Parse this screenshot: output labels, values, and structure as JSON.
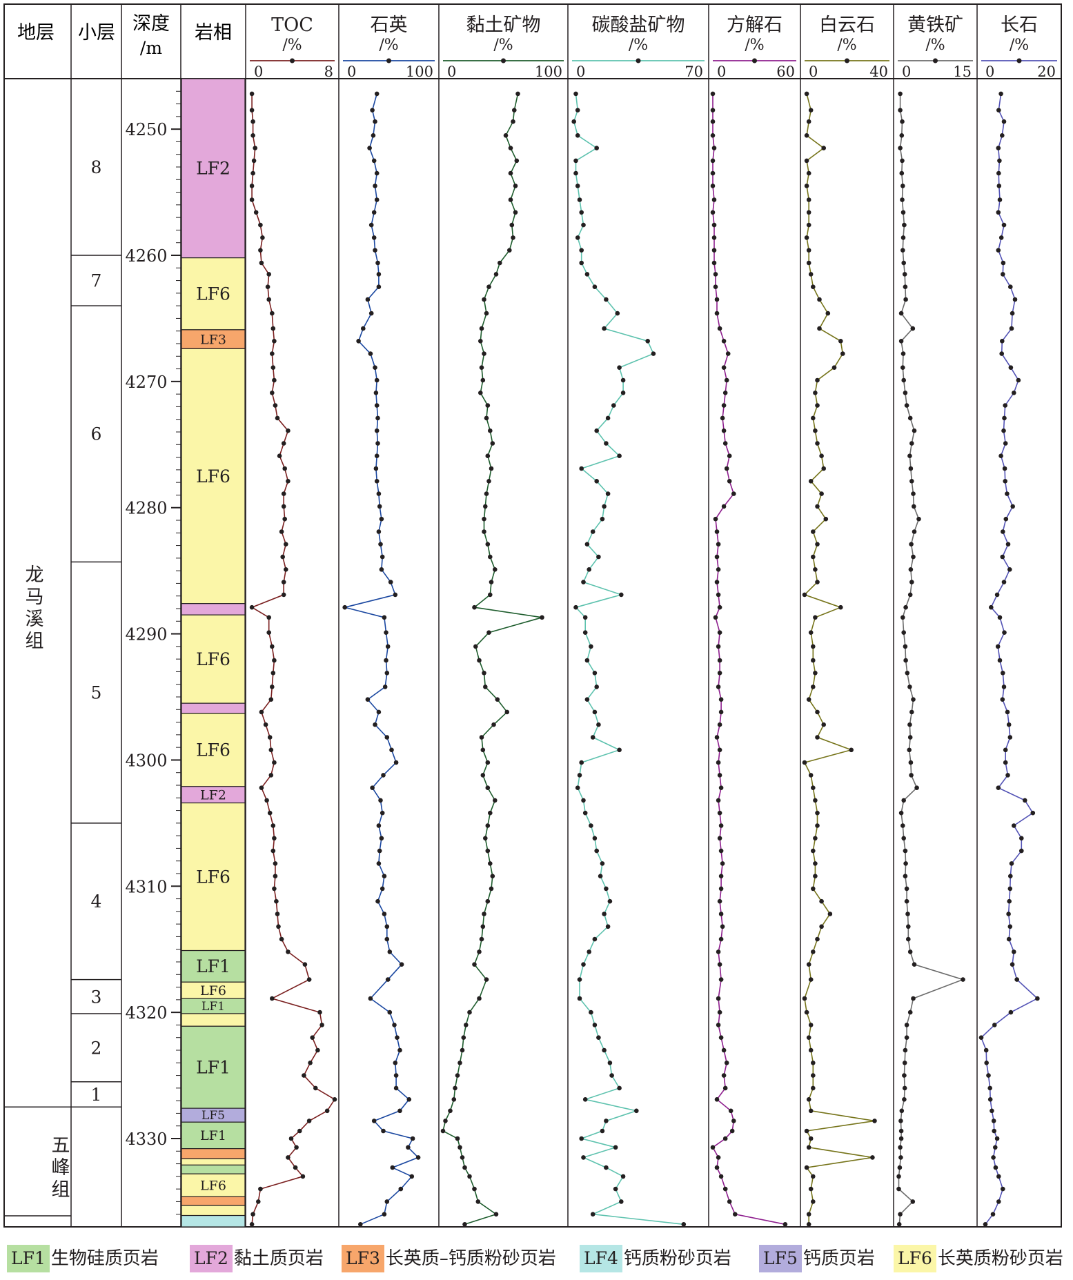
{
  "header": {
    "stratum": "地层",
    "sublayer": "小层",
    "depth_line1": "深度",
    "depth_line2": "/m",
    "lithofacies": "岩相"
  },
  "formations": [
    {
      "name": "龙马溪组",
      "from": 4246,
      "to": 4327.5
    },
    {
      "name": "五峰组",
      "from": 4327.5,
      "to": 4337
    }
  ],
  "sublayers": [
    {
      "label": "8",
      "from": 4246,
      "to": 4260
    },
    {
      "label": "7",
      "from": 4260,
      "to": 4264
    },
    {
      "label": "6",
      "from": 4264,
      "to": 4284.3
    },
    {
      "label": "5",
      "from": 4284.3,
      "to": 4305
    },
    {
      "label": "4",
      "from": 4305,
      "to": 4317.4
    },
    {
      "label": "3",
      "from": 4317.4,
      "to": 4320.1
    },
    {
      "label": "2",
      "from": 4320.1,
      "to": 4325.5
    },
    {
      "label": "1",
      "from": 4325.5,
      "to": 4327.5
    }
  ],
  "lithofacies_colors": {
    "LF1": "#b6dfa1",
    "LF2": "#e3a8da",
    "LF3": "#f7a66b",
    "LF4": "#b5e6e5",
    "LF5": "#b2acdc",
    "LF6": "#fbf6a8"
  },
  "lithofacies_column": [
    {
      "code": "LF2",
      "from": 4246,
      "to": 4260.2,
      "label": "LF2"
    },
    {
      "code": "LF6",
      "from": 4260.2,
      "to": 4265.9,
      "label": "LF6"
    },
    {
      "code": "LF3",
      "from": 4265.9,
      "to": 4267.4,
      "label": "LF3"
    },
    {
      "code": "LF6",
      "from": 4267.4,
      "to": 4287.6,
      "label": "LF6"
    },
    {
      "code": "LF2",
      "from": 4287.6,
      "to": 4288.5,
      "label": ""
    },
    {
      "code": "LF6",
      "from": 4288.5,
      "to": 4295.5,
      "label": "LF6"
    },
    {
      "code": "LF2",
      "from": 4295.5,
      "to": 4296.3,
      "label": ""
    },
    {
      "code": "LF6",
      "from": 4296.3,
      "to": 4302.1,
      "label": "LF6"
    },
    {
      "code": "LF2",
      "from": 4302.1,
      "to": 4303.4,
      "label": "LF2"
    },
    {
      "code": "LF6",
      "from": 4303.4,
      "to": 4315.1,
      "label": "LF6"
    },
    {
      "code": "LF1",
      "from": 4315.1,
      "to": 4317.6,
      "label": "LF1"
    },
    {
      "code": "LF6",
      "from": 4317.6,
      "to": 4318.9,
      "label": "LF6"
    },
    {
      "code": "LF1",
      "from": 4318.9,
      "to": 4320.1,
      "label": "LF1"
    },
    {
      "code": "LF6",
      "from": 4320.1,
      "to": 4321.1,
      "label": ""
    },
    {
      "code": "LF1",
      "from": 4321.1,
      "to": 4327.6,
      "label": "LF1"
    },
    {
      "code": "LF5",
      "from": 4327.6,
      "to": 4328.7,
      "label": "LF5"
    },
    {
      "code": "LF1",
      "from": 4328.7,
      "to": 4330.8,
      "label": "LF1"
    },
    {
      "code": "LF3",
      "from": 4330.8,
      "to": 4331.6,
      "label": ""
    },
    {
      "code": "LF6",
      "from": 4331.6,
      "to": 4332.1,
      "label": ""
    },
    {
      "code": "LF1",
      "from": 4332.1,
      "to": 4332.8,
      "label": ""
    },
    {
      "code": "LF6",
      "from": 4332.8,
      "to": 4334.6,
      "label": "LF6"
    },
    {
      "code": "LF3",
      "from": 4334.6,
      "to": 4335.3,
      "label": ""
    },
    {
      "code": "LF6",
      "from": 4335.3,
      "to": 4336.1,
      "label": ""
    },
    {
      "code": "LF4",
      "from": 4336.1,
      "to": 4337,
      "label": ""
    }
  ],
  "legend": [
    {
      "code": "LF1",
      "name": "生物硅质页岩"
    },
    {
      "code": "LF2",
      "name": "黏土质页岩"
    },
    {
      "code": "LF3",
      "name": "长英质–钙质粉砂页岩"
    },
    {
      "code": "LF4",
      "name": "钙质粉砂页岩"
    },
    {
      "code": "LF5",
      "name": "钙质页岩"
    },
    {
      "code": "LF6",
      "name": "长英质粉砂页岩"
    }
  ],
  "chart_data": {
    "type": "line",
    "orientation": "vertical-depth-log",
    "y_axis": {
      "label": "深度/m",
      "range": [
        4246,
        4337
      ],
      "reversed": true,
      "ticks": [
        4250,
        4260,
        4270,
        4280,
        4290,
        4300,
        4310,
        4320,
        4330
      ]
    },
    "depth": [
      4247.2,
      4248.5,
      4249.4,
      4250.5,
      4251.5,
      4252.5,
      4253.5,
      4254.5,
      4255.6,
      4256.6,
      4257.6,
      4258.6,
      4259.6,
      4260.6,
      4261.5,
      4262.5,
      4263.5,
      4264.6,
      4265.8,
      4266.8,
      4267.8,
      4268.9,
      4269.9,
      4270.9,
      4271.9,
      4272.9,
      4273.9,
      4274.9,
      4275.9,
      4276.9,
      4277.9,
      4278.9,
      4279.9,
      4280.9,
      4281.9,
      4282.9,
      4283.9,
      4284.9,
      4285.9,
      4286.9,
      4287.9,
      4288.7,
      4289.9,
      4291.0,
      4292.1,
      4293.1,
      4294.2,
      4295.2,
      4296.2,
      4297.2,
      4298.2,
      4299.2,
      4300.2,
      4301.2,
      4302.2,
      4303.2,
      4304.2,
      4305.2,
      4306.2,
      4307.2,
      4308.2,
      4309.2,
      4310.2,
      4311.2,
      4312.2,
      4313.2,
      4314.2,
      4315.2,
      4316.2,
      4317.4,
      4318.9,
      4320.0,
      4321.0,
      4322.0,
      4323.0,
      4324.0,
      4325.0,
      4326.0,
      4326.9,
      4327.8,
      4328.6,
      4329.4,
      4330.0,
      4330.7,
      4331.5,
      4332.3,
      4333.0,
      4334.0,
      4335.0,
      4336.0,
      4336.8
    ],
    "series": [
      {
        "name": "TOC",
        "unit": "/%",
        "xlim": [
          0,
          8
        ],
        "color": "#7a1f1f",
        "values": [
          0.2,
          0.2,
          0.3,
          0.3,
          0.5,
          0.4,
          0.3,
          0.2,
          0.2,
          0.6,
          1.0,
          1.2,
          1.0,
          1.1,
          1.8,
          1.7,
          1.8,
          2.1,
          2.2,
          2.3,
          2.1,
          2.2,
          2.3,
          2.1,
          2.4,
          2.6,
          3.6,
          3.2,
          2.8,
          3.3,
          3.6,
          3.2,
          3.2,
          3.3,
          3.0,
          3.4,
          3.1,
          3.4,
          3.2,
          3.2,
          0.2,
          1.8,
          1.8,
          2.1,
          2.3,
          2.2,
          2.1,
          2.0,
          1.1,
          1.5,
          1.9,
          2.0,
          2.3,
          2.0,
          1.1,
          1.6,
          1.9,
          2.2,
          2.3,
          2.2,
          2.4,
          2.4,
          2.3,
          2.5,
          2.6,
          2.7,
          3.0,
          3.6,
          5.2,
          5.6,
          2.1,
          6.6,
          6.8,
          5.9,
          6.4,
          5.7,
          5.1,
          6.2,
          8.0,
          7.3,
          5.6,
          4.7,
          3.9,
          4.4,
          3.6,
          4.3,
          5.0,
          1.0,
          0.8,
          0.3,
          0.2
        ]
      },
      {
        "name": "石英",
        "unit": "/%",
        "xlim": [
          0,
          100
        ],
        "color": "#1a47a0",
        "values": [
          37,
          32,
          35,
          33,
          29,
          34,
          37,
          35,
          37,
          34,
          31,
          34,
          35,
          38,
          39,
          39,
          27,
          31,
          22,
          17,
          30,
          35,
          37,
          36,
          37,
          38,
          37,
          38,
          37,
          36,
          37,
          39,
          40,
          42,
          39,
          41,
          43,
          42,
          52,
          57,
          2,
          45,
          47,
          49,
          47,
          48,
          46,
          27,
          39,
          35,
          48,
          53,
          58,
          44,
          32,
          41,
          43,
          39,
          42,
          40,
          39,
          45,
          43,
          38,
          45,
          48,
          48,
          51,
          64,
          49,
          30,
          51,
          56,
          59,
          62,
          57,
          58,
          58,
          72,
          62,
          34,
          44,
          76,
          71,
          82,
          54,
          75,
          63,
          48,
          45,
          19
        ]
      },
      {
        "name": "黏土矿物",
        "unit": "/%",
        "xlim": [
          0,
          100
        ],
        "color": "#1d5c2c",
        "values": [
          62,
          59,
          58,
          52,
          56,
          61,
          56,
          60,
          56,
          60,
          57,
          58,
          55,
          47,
          44,
          38,
          34,
          36,
          32,
          31,
          34,
          32,
          33,
          31,
          37,
          36,
          39,
          41,
          37,
          40,
          38,
          36,
          35,
          34,
          34,
          37,
          39,
          43,
          40,
          39,
          26,
          82,
          38,
          27,
          30,
          34,
          35,
          45,
          53,
          42,
          32,
          33,
          37,
          33,
          37,
          43,
          39,
          37,
          35,
          37,
          39,
          41,
          40,
          37,
          34,
          33,
          32,
          30,
          26,
          36,
          30,
          22,
          19,
          17,
          16,
          14,
          12,
          10,
          9,
          6,
          2,
          0,
          12,
          14,
          16,
          18,
          22,
          26,
          29,
          44,
          18
        ]
      },
      {
        "name": "碳酸盐矿物",
        "unit": "/%",
        "xlim": [
          0,
          70
        ],
        "color": "#5dc2ae",
        "values": [
          2,
          3,
          1,
          3,
          13,
          2,
          2,
          3,
          4,
          5,
          6,
          3,
          5,
          5,
          8,
          12,
          18,
          24,
          17,
          40,
          43,
          25,
          27,
          27,
          22,
          19,
          13,
          18,
          25,
          5,
          13,
          19,
          17,
          16,
          11,
          8,
          14,
          9,
          6,
          26,
          2,
          7,
          7,
          10,
          8,
          12,
          13,
          8,
          12,
          14,
          11,
          25,
          5,
          4,
          3,
          6,
          7,
          10,
          12,
          13,
          16,
          15,
          18,
          20,
          17,
          19,
          12,
          9,
          6,
          4,
          4,
          10,
          12,
          14,
          17,
          20,
          21,
          25,
          7,
          34,
          18,
          16,
          5,
          23,
          6,
          18,
          27,
          23,
          26,
          11,
          59
        ]
      },
      {
        "name": "方解石",
        "unit": "/%",
        "xlim": [
          0,
          60
        ],
        "color": "#8e1e8e",
        "values": [
          0,
          0,
          0,
          0,
          1,
          0,
          0,
          0,
          1,
          0,
          1,
          1,
          1,
          1,
          2,
          2,
          3,
          3,
          5,
          8,
          11,
          8,
          10,
          9,
          8,
          7,
          8,
          9,
          12,
          10,
          12,
          15,
          8,
          2,
          3,
          4,
          3,
          4,
          3,
          4,
          5,
          2,
          5,
          4,
          5,
          5,
          4,
          6,
          6,
          5,
          3,
          5,
          4,
          5,
          6,
          4,
          5,
          6,
          5,
          6,
          7,
          6,
          6,
          5,
          6,
          7,
          6,
          4,
          5,
          6,
          4,
          5,
          4,
          6,
          8,
          10,
          8,
          9,
          3,
          13,
          15,
          14,
          9,
          0,
          4,
          3,
          6,
          9,
          12,
          16,
          52
        ]
      },
      {
        "name": "白云石",
        "unit": "/%",
        "xlim": [
          0,
          40
        ],
        "color": "#76741a",
        "values": [
          1,
          3,
          2,
          1,
          9,
          1,
          2,
          1,
          2,
          2,
          2,
          1,
          2,
          2,
          3,
          4,
          7,
          11,
          7,
          17,
          18,
          14,
          6,
          5,
          6,
          4,
          5,
          6,
          8,
          9,
          3,
          8,
          6,
          10,
          4,
          6,
          4,
          5,
          6,
          0,
          17,
          5,
          3,
          4,
          4,
          5,
          4,
          2,
          6,
          9,
          6,
          22,
          0,
          3,
          4,
          5,
          6,
          6,
          5,
          4,
          5,
          5,
          4,
          8,
          12,
          8,
          6,
          4,
          2,
          3,
          0,
          1,
          3,
          2,
          3,
          4,
          4,
          4,
          2,
          3,
          33,
          1,
          3,
          2,
          32,
          1,
          4,
          3,
          4,
          2,
          2
        ]
      },
      {
        "name": "黄铁矿",
        "unit": "/%",
        "xlim": [
          0,
          15
        ],
        "color": "#6b6b6b",
        "values": [
          0.5,
          0.5,
          0.9,
          0.8,
          0.5,
          0.9,
          0.8,
          1.0,
          0.9,
          1.1,
          1.3,
          1.1,
          1.0,
          1.2,
          1.4,
          1.5,
          1.6,
          0.7,
          3.0,
          0.7,
          1.1,
          1.0,
          1.2,
          1.5,
          1.8,
          2.5,
          3.3,
          2.8,
          2.4,
          2.6,
          2.8,
          3.1,
          3.2,
          4.2,
          3.3,
          2.7,
          3.1,
          2.6,
          2.8,
          2.5,
          1.6,
          1.0,
          1.2,
          1.5,
          1.6,
          1.9,
          2.4,
          3.1,
          2.8,
          2.4,
          2.5,
          2.3,
          2.6,
          2.7,
          3.8,
          1.2,
          0.7,
          1.0,
          1.2,
          1.5,
          1.6,
          1.5,
          1.8,
          1.8,
          2.0,
          2.1,
          2.1,
          2.5,
          3.3,
          13.0,
          3.1,
          2.5,
          1.8,
          1.8,
          1.5,
          1.4,
          1.3,
          1.4,
          1.3,
          0.8,
          0.6,
          0.7,
          0.7,
          0.5,
          0.6,
          0.4,
          0.2,
          0.2,
          3.0,
          0.5,
          0.3
        ]
      },
      {
        "name": "长石",
        "unit": "/%",
        "xlim": [
          0,
          20
        ],
        "color": "#5252b5",
        "values": [
          5.2,
          4.6,
          6.0,
          5.5,
          4.5,
          4.8,
          4.6,
          4.7,
          4.9,
          4.5,
          6.0,
          5.3,
          4.5,
          5.8,
          5.7,
          7.7,
          8.9,
          8.2,
          8.0,
          5.5,
          5.4,
          7.8,
          9.8,
          8.6,
          6.3,
          6.1,
          5.9,
          6.4,
          5.2,
          6.2,
          6.3,
          6.8,
          8.3,
          6.5,
          5.7,
          7.1,
          5.6,
          7.5,
          6.0,
          4.2,
          2.6,
          4.9,
          6.1,
          4.4,
          4.9,
          5.7,
          6.0,
          5.6,
          6.9,
          7.3,
          7.6,
          6.4,
          6.4,
          7.0,
          4.5,
          11.5,
          13.6,
          8.6,
          10.6,
          10.6,
          8.0,
          7.7,
          7.6,
          7.4,
          7.2,
          7.6,
          7.3,
          8.6,
          8.2,
          9.4,
          14.8,
          7.8,
          3.5,
          0.0,
          1.3,
          1.4,
          1.9,
          2.3,
          2.4,
          2.8,
          3.3,
          3.4,
          4.2,
          3.7,
          3.2,
          3.8,
          4.6,
          5.7,
          4.6,
          3.1,
          1.1
        ]
      }
    ]
  }
}
